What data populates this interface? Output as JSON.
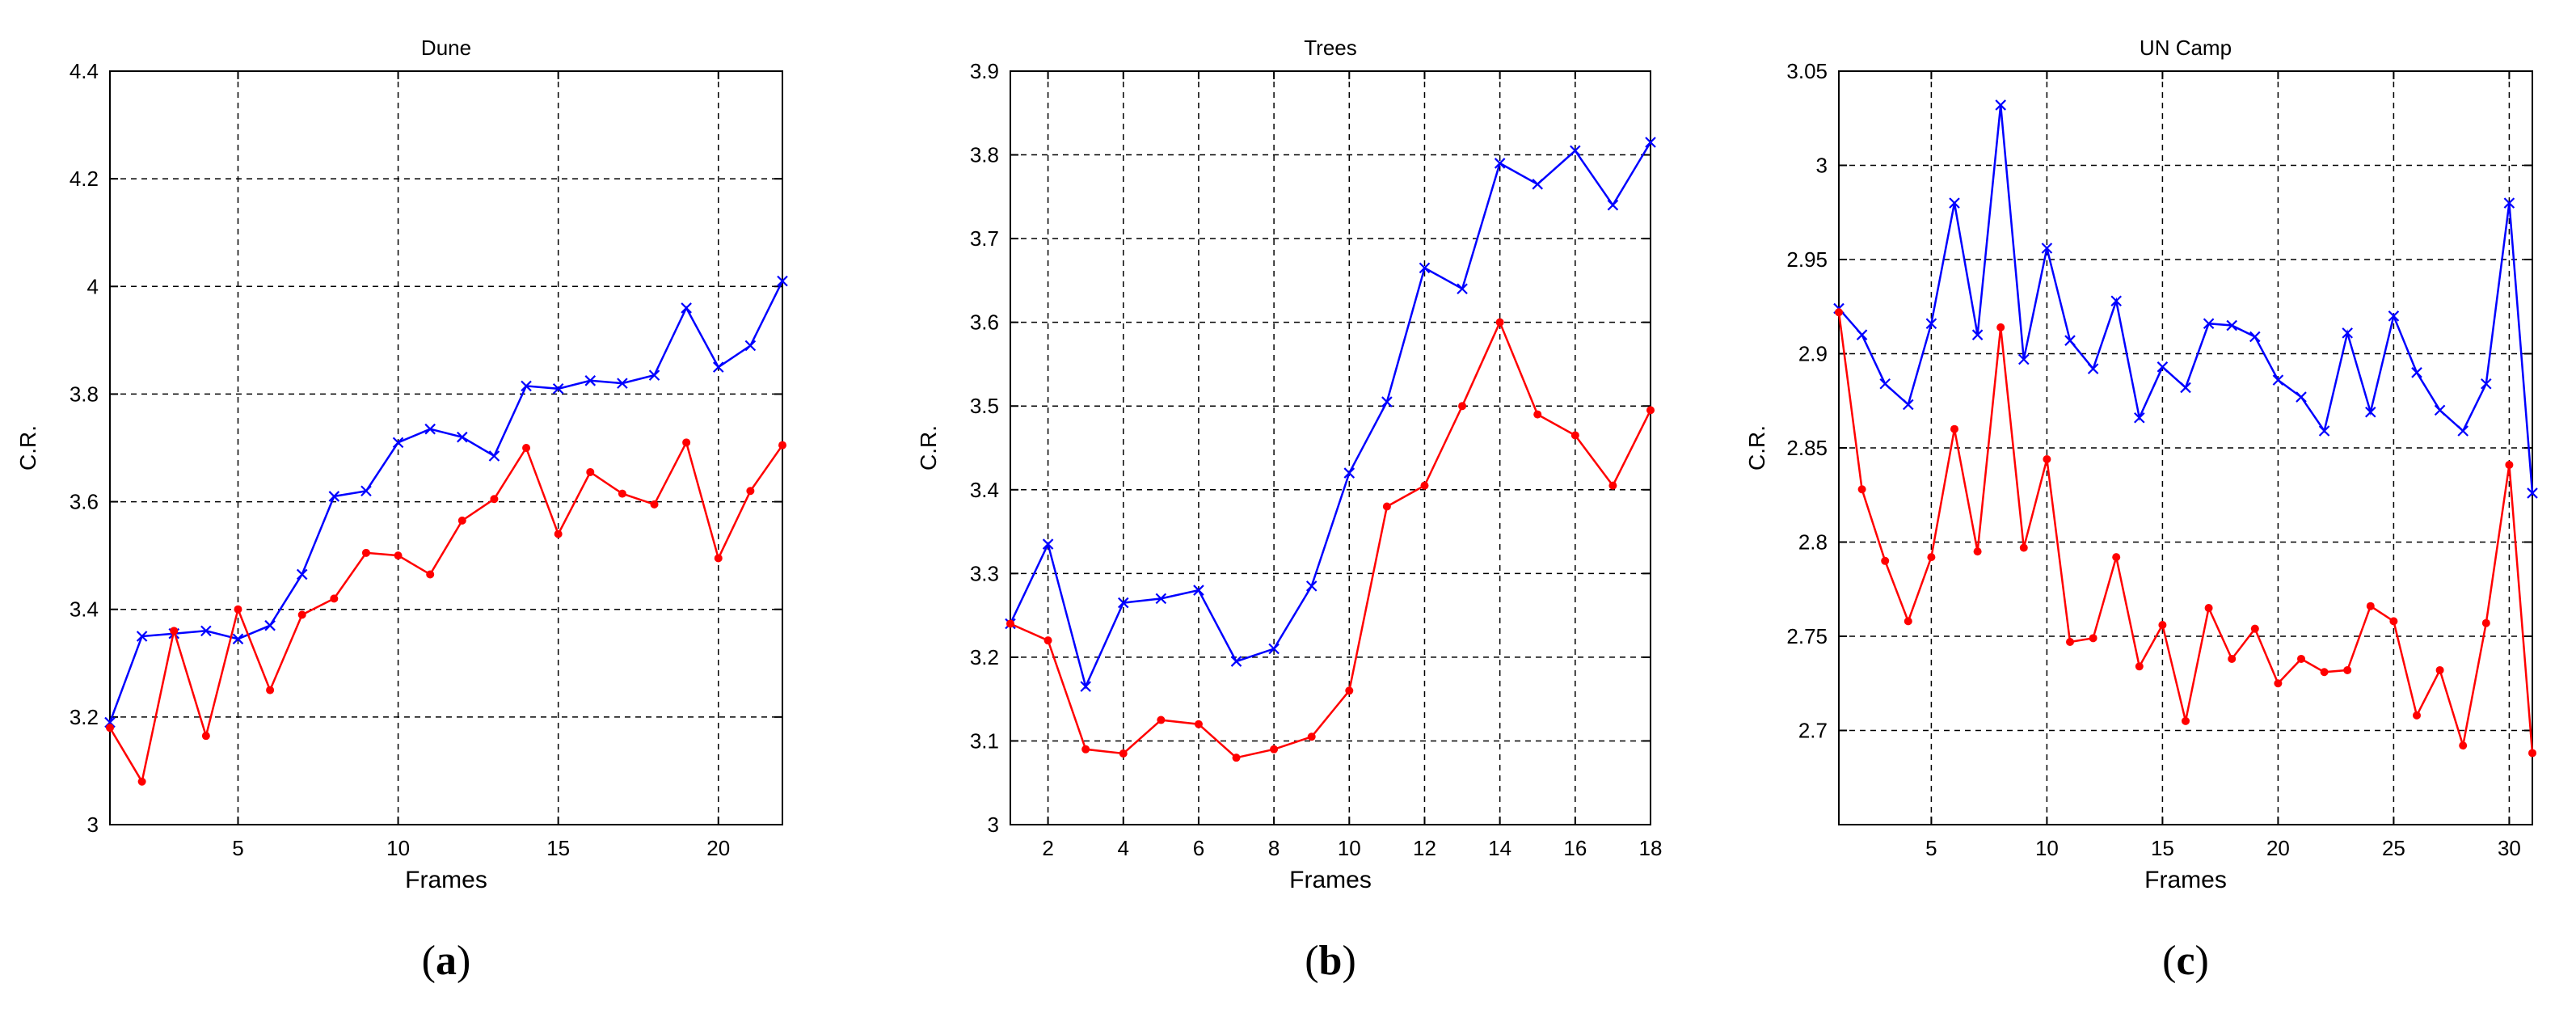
{
  "chart_data": [
    {
      "type": "line",
      "title": "Dune",
      "xlabel": "Frames",
      "ylabel": "C.R.",
      "panel_label": "a",
      "xlim": [
        1,
        22
      ],
      "ylim": [
        3,
        4.4
      ],
      "xticks": [
        5,
        10,
        15,
        20
      ],
      "yticks": [
        3,
        3.2,
        3.4,
        3.6,
        3.8,
        4,
        4.2,
        4.4
      ],
      "ytick_labels": [
        "3",
        "3.2",
        "3.4",
        "3.6",
        "3.8",
        "4",
        "4.2",
        "4.4"
      ],
      "grid": true,
      "x": [
        1,
        2,
        3,
        4,
        5,
        6,
        7,
        8,
        9,
        10,
        11,
        12,
        13,
        14,
        15,
        16,
        17,
        18,
        19,
        20,
        21,
        22
      ],
      "series": [
        {
          "color": "#0000ff",
          "marker": "x",
          "values": [
            3.19,
            3.35,
            3.355,
            3.36,
            3.345,
            3.37,
            3.465,
            3.61,
            3.62,
            3.71,
            3.735,
            3.72,
            3.685,
            3.815,
            3.81,
            3.825,
            3.82,
            3.835,
            3.96,
            3.85,
            3.89,
            4.01
          ]
        },
        {
          "color": "#ff0000",
          "marker": "dot",
          "values": [
            3.18,
            3.08,
            3.36,
            3.165,
            3.4,
            3.25,
            3.39,
            3.42,
            3.505,
            3.5,
            3.465,
            3.565,
            3.605,
            3.7,
            3.54,
            3.655,
            3.615,
            3.595,
            3.71,
            3.495,
            3.62,
            3.705
          ]
        }
      ]
    },
    {
      "type": "line",
      "title": "Trees",
      "xlabel": "Frames",
      "ylabel": "C.R.",
      "panel_label": "b",
      "xlim": [
        1,
        18
      ],
      "ylim": [
        3,
        3.9
      ],
      "xticks": [
        2,
        4,
        6,
        8,
        10,
        12,
        14,
        16,
        18
      ],
      "yticks": [
        3,
        3.1,
        3.2,
        3.3,
        3.4,
        3.5,
        3.6,
        3.7,
        3.8,
        3.9
      ],
      "ytick_labels": [
        "3",
        "3.1",
        "3.2",
        "3.3",
        "3.4",
        "3.5",
        "3.6",
        "3.7",
        "3.8",
        "3.9"
      ],
      "grid": true,
      "x": [
        1,
        2,
        3,
        4,
        5,
        6,
        7,
        8,
        9,
        10,
        11,
        12,
        13,
        14,
        15,
        16,
        17,
        18
      ],
      "series": [
        {
          "color": "#0000ff",
          "marker": "x",
          "values": [
            3.24,
            3.335,
            3.165,
            3.265,
            3.27,
            3.28,
            3.195,
            3.21,
            3.285,
            3.42,
            3.505,
            3.665,
            3.64,
            3.79,
            3.765,
            3.805,
            3.74,
            3.815
          ]
        },
        {
          "color": "#ff0000",
          "marker": "dot",
          "values": [
            3.24,
            3.22,
            3.09,
            3.085,
            3.125,
            3.12,
            3.08,
            3.09,
            3.105,
            3.16,
            3.38,
            3.405,
            3.5,
            3.6,
            3.49,
            3.465,
            3.405,
            3.495
          ]
        }
      ]
    },
    {
      "type": "line",
      "title": "UN Camp",
      "xlabel": "Frames",
      "ylabel": "C.R.",
      "panel_label": "c",
      "xlim": [
        1,
        31
      ],
      "ylim": [
        2.65,
        3.05
      ],
      "xticks": [
        5,
        10,
        15,
        20,
        25,
        30
      ],
      "yticks": [
        2.7,
        2.75,
        2.8,
        2.85,
        2.9,
        2.95,
        3,
        3.05
      ],
      "ytick_labels": [
        "2.7",
        "2.75",
        "2.8",
        "2.85",
        "2.9",
        "2.95",
        "3",
        "3.05"
      ],
      "grid": true,
      "x": [
        1,
        2,
        3,
        4,
        5,
        6,
        7,
        8,
        9,
        10,
        11,
        12,
        13,
        14,
        15,
        16,
        17,
        18,
        19,
        20,
        21,
        22,
        23,
        24,
        25,
        26,
        27,
        28,
        29,
        30,
        31
      ],
      "series": [
        {
          "color": "#0000ff",
          "marker": "x",
          "values": [
            2.924,
            2.91,
            2.884,
            2.873,
            2.916,
            2.98,
            2.91,
            3.032,
            2.897,
            2.956,
            2.907,
            2.892,
            2.928,
            2.866,
            2.893,
            2.882,
            2.916,
            2.915,
            2.909,
            2.886,
            2.877,
            2.859,
            2.911,
            2.869,
            2.92,
            2.89,
            2.87,
            2.859,
            2.884,
            2.98,
            2.826
          ]
        },
        {
          "color": "#ff0000",
          "marker": "dot",
          "values": [
            2.922,
            2.828,
            2.79,
            2.758,
            2.792,
            2.86,
            2.795,
            2.914,
            2.797,
            2.844,
            2.747,
            2.749,
            2.792,
            2.734,
            2.756,
            2.705,
            2.765,
            2.738,
            2.754,
            2.725,
            2.738,
            2.731,
            2.732,
            2.766,
            2.758,
            2.708,
            2.732,
            2.692,
            2.757,
            2.841,
            2.688
          ]
        }
      ]
    }
  ]
}
